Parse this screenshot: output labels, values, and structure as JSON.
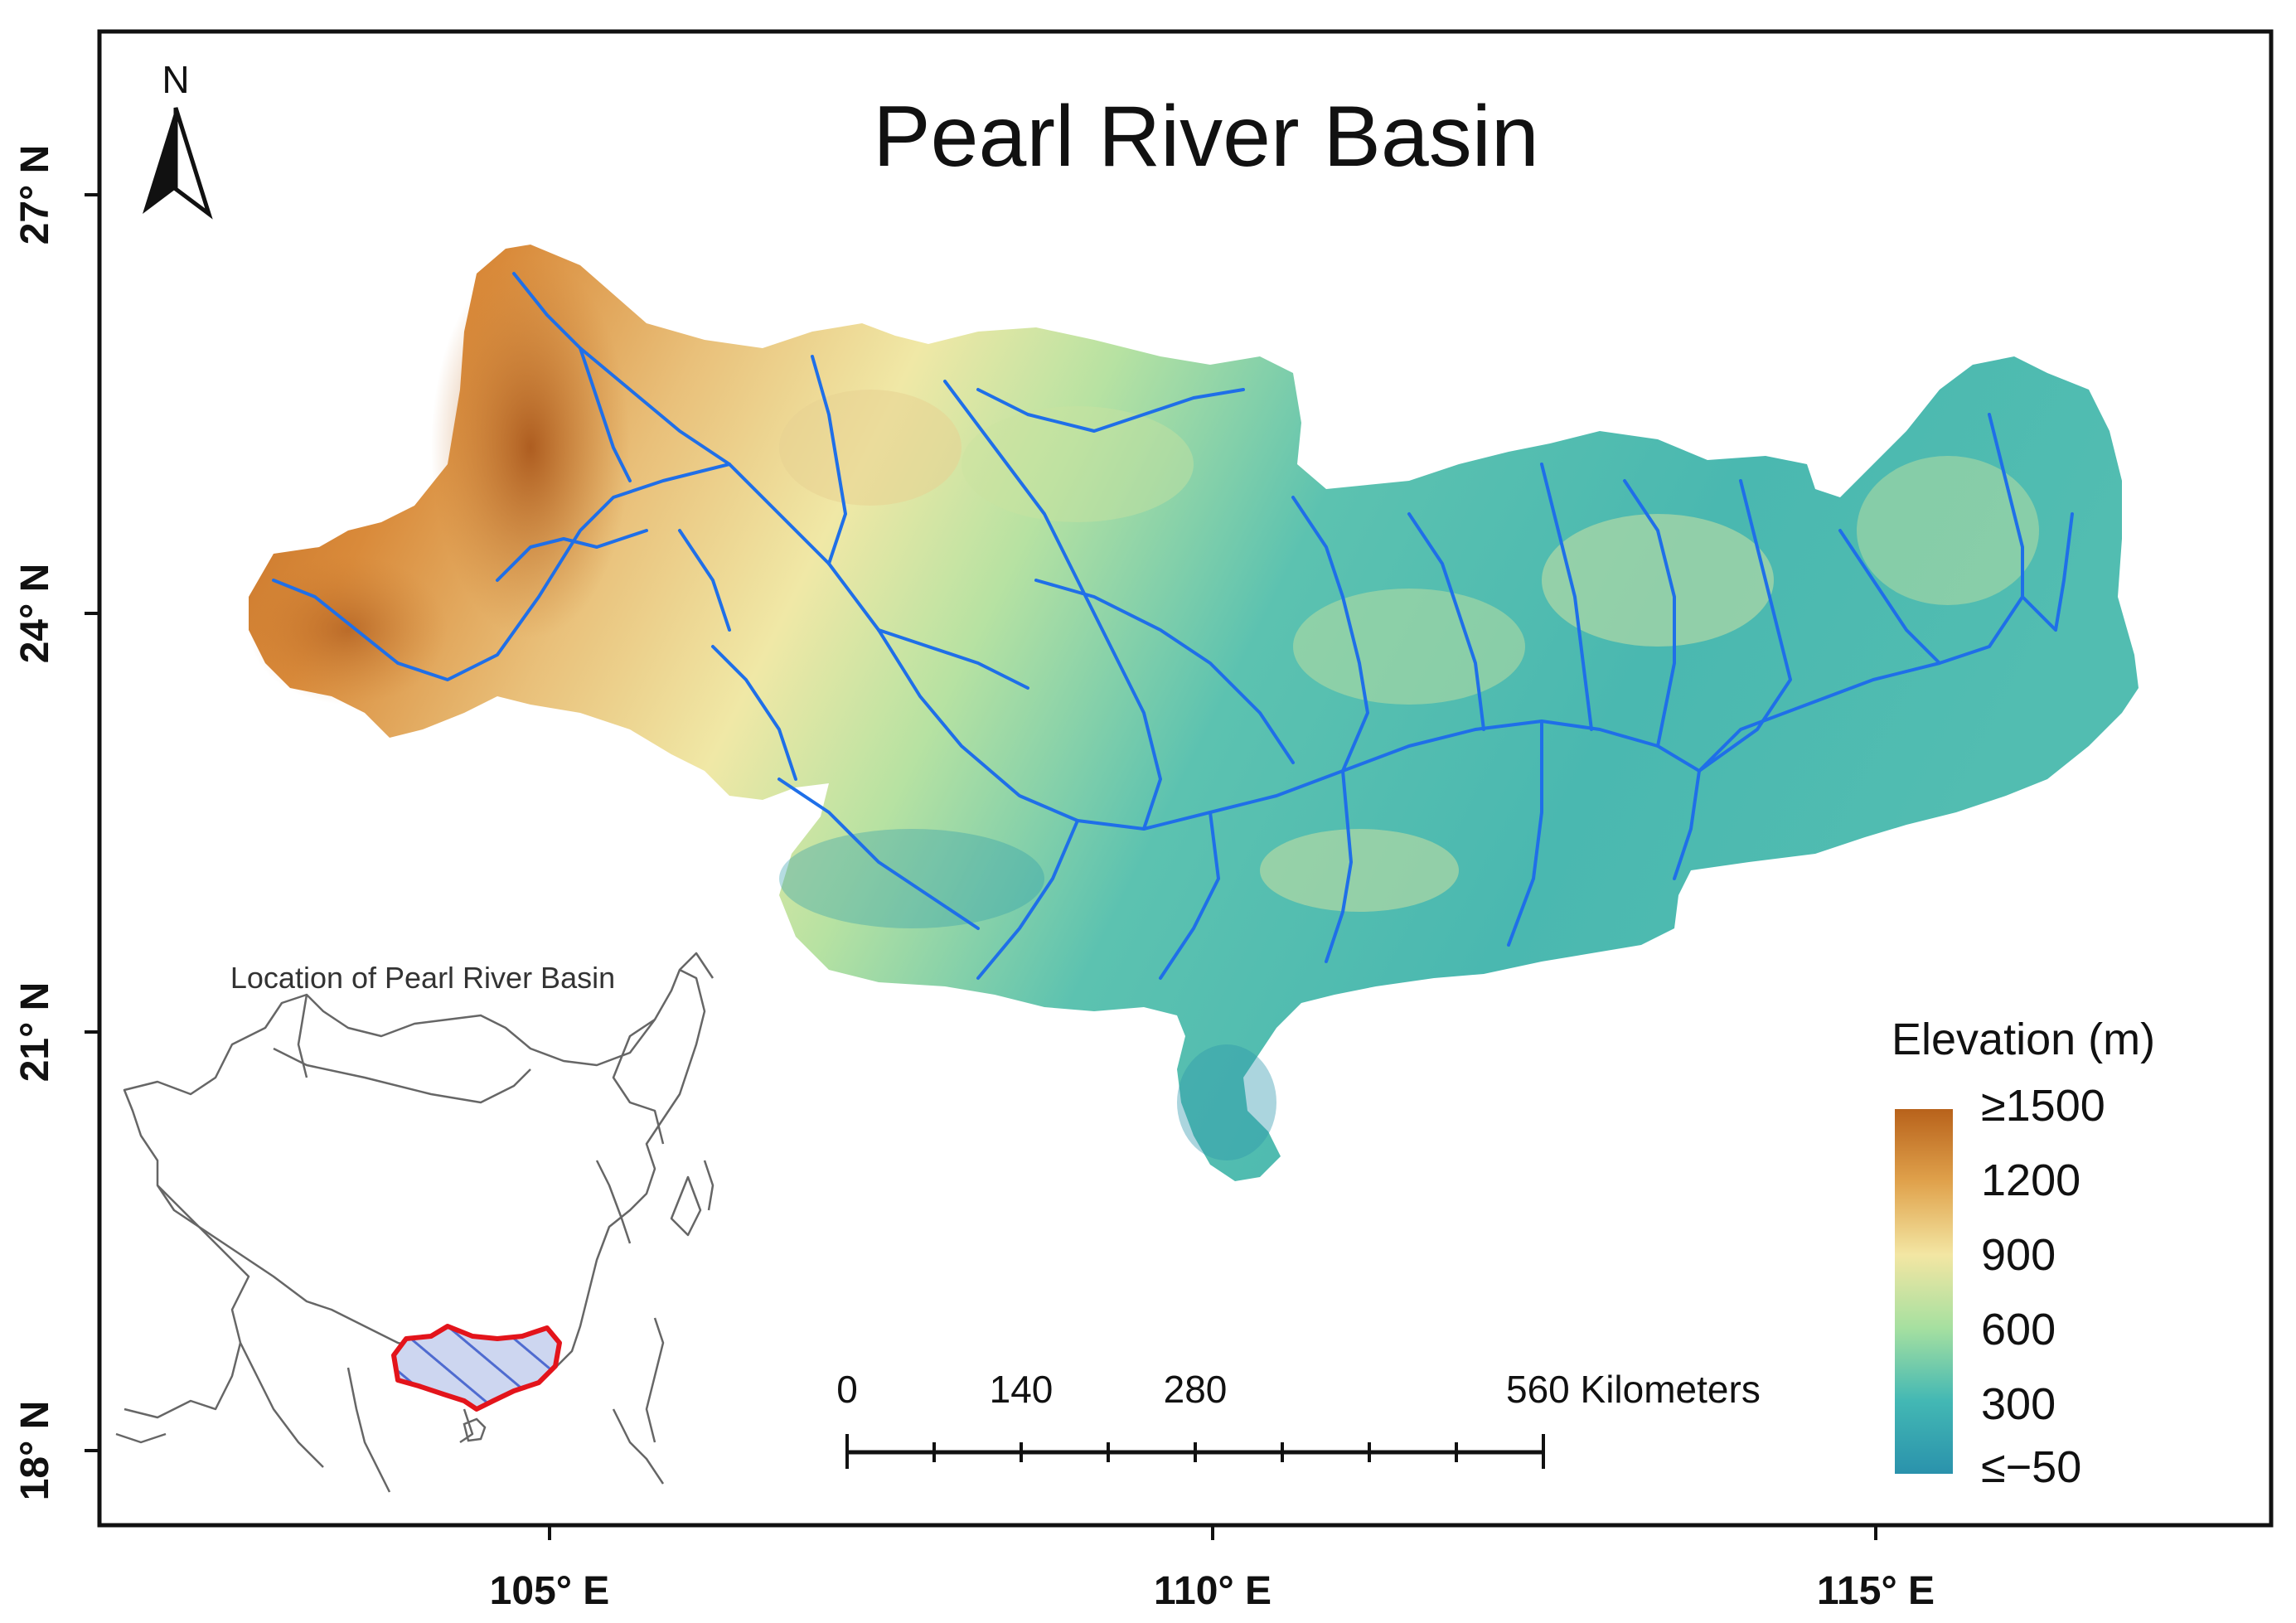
{
  "map": {
    "title": "Pearl River Basin",
    "north_label": "N",
    "lon_ticks": [
      "105° E",
      "110° E",
      "115° E"
    ],
    "lat_ticks": [
      "27° N",
      "24° N",
      "21° N",
      "18° N"
    ],
    "scale_bar": {
      "labels": [
        "0",
        "140",
        "280",
        "560 Kilometers"
      ]
    },
    "legend": {
      "title": "Elevation (m)",
      "labels": [
        "≥1500",
        "1200",
        "900",
        "600",
        "300",
        "≤−50"
      ],
      "colors": [
        "#b8621b",
        "#e0a24c",
        "#f3e6a3",
        "#a6e0a0",
        "#43b8b4",
        "#2a92ac"
      ]
    },
    "inset": {
      "title": "Location of Pearl River Basin",
      "basin_outline_color": "#e3141b",
      "basin_hatch_color": "#4f6bd0"
    },
    "river_color": "#1f6fe8"
  }
}
